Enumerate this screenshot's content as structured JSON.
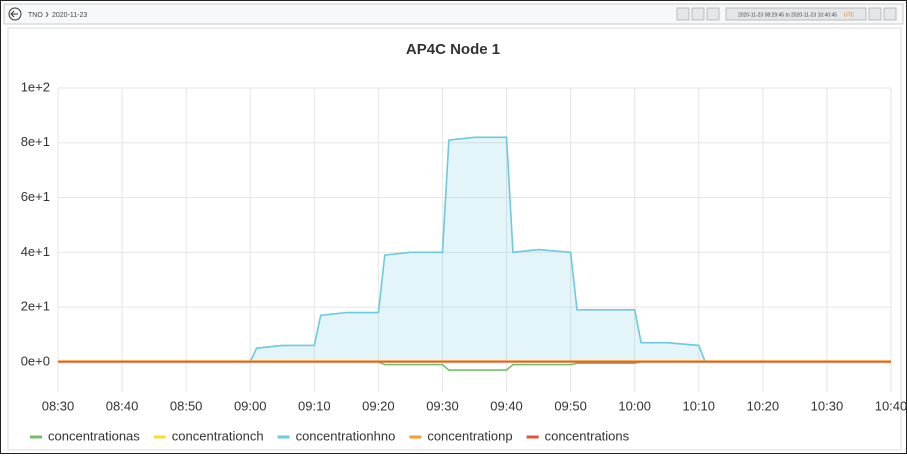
{
  "toolbar": {
    "breadcrumb": [
      "TNO",
      "2020-11-23"
    ],
    "time_range": "2020-11-23 08:29:45 to 2020-11-23 10:40:45",
    "timezone": "UTC"
  },
  "chart_data": {
    "type": "line",
    "title": "AP4C Node 1",
    "x": [
      "08:30",
      "08:40",
      "08:50",
      "09:00",
      "09:01",
      "09:05",
      "09:10",
      "09:11",
      "09:15",
      "09:20",
      "09:21",
      "09:25",
      "09:30",
      "09:31",
      "09:35",
      "09:40",
      "09:41",
      "09:45",
      "09:50",
      "09:51",
      "09:55",
      "10:00",
      "10:01",
      "10:05",
      "10:10",
      "10:11",
      "10:20",
      "10:30",
      "10:40"
    ],
    "series": [
      {
        "name": "concentrationas",
        "color": "#73bf69",
        "values": [
          0,
          0,
          0,
          0,
          0,
          0,
          0,
          0,
          0,
          0,
          -1,
          -1,
          -1,
          -3,
          -3,
          -3,
          -1,
          -1,
          -1,
          -0.5,
          -0.5,
          -0.5,
          0,
          0,
          0,
          0,
          0,
          0,
          0
        ]
      },
      {
        "name": "concentrationch",
        "color": "#fade2a",
        "values": [
          0,
          0,
          0,
          0,
          0,
          0,
          0,
          0,
          0,
          0,
          0,
          0,
          0,
          0,
          0,
          0,
          0,
          0,
          0,
          0,
          0,
          0,
          0,
          0,
          0,
          0,
          0,
          0,
          0
        ]
      },
      {
        "name": "concentrationhno",
        "color": "#6ccadc",
        "fill": true,
        "values": [
          0,
          0,
          0,
          0,
          5,
          6,
          6,
          17,
          18,
          18,
          39,
          40,
          40,
          81,
          82,
          82,
          40,
          41,
          40,
          19,
          19,
          19,
          7,
          7,
          6,
          0,
          0,
          0,
          0
        ]
      },
      {
        "name": "concentrationp",
        "color": "#ff9830",
        "values": [
          0.3,
          0.3,
          0.3,
          0.3,
          0.3,
          0.3,
          0.3,
          0.3,
          0.3,
          0.3,
          0.3,
          0.3,
          0.3,
          0.3,
          0.3,
          0.3,
          0.3,
          0.3,
          0.3,
          0.3,
          0.3,
          0.3,
          0.3,
          0.3,
          0.3,
          0.3,
          0.3,
          0.3,
          0.3
        ]
      },
      {
        "name": "concentrations",
        "color": "#e0523f",
        "values": [
          0,
          0,
          0,
          0,
          0,
          0,
          0,
          0,
          0,
          0,
          0,
          0,
          0,
          0,
          0,
          0,
          0,
          0,
          0,
          0,
          0,
          0,
          0,
          0,
          0,
          0,
          0,
          0,
          0
        ]
      }
    ],
    "xlim": [
      "08:30",
      "10:40"
    ],
    "xticks": [
      "08:30",
      "08:40",
      "08:50",
      "09:00",
      "09:10",
      "09:20",
      "09:30",
      "09:40",
      "09:50",
      "10:00",
      "10:10",
      "10:20",
      "10:30",
      "10:40"
    ],
    "ylim": [
      -11,
      100
    ],
    "yticks": [
      {
        "value": 0,
        "label": "0e+0"
      },
      {
        "value": 20,
        "label": "2e+1"
      },
      {
        "value": 40,
        "label": "4e+1"
      },
      {
        "value": 60,
        "label": "6e+1"
      },
      {
        "value": 80,
        "label": "8e+1"
      },
      {
        "value": 100,
        "label": "1e+2"
      }
    ],
    "grid": true,
    "legend": "bottom"
  }
}
